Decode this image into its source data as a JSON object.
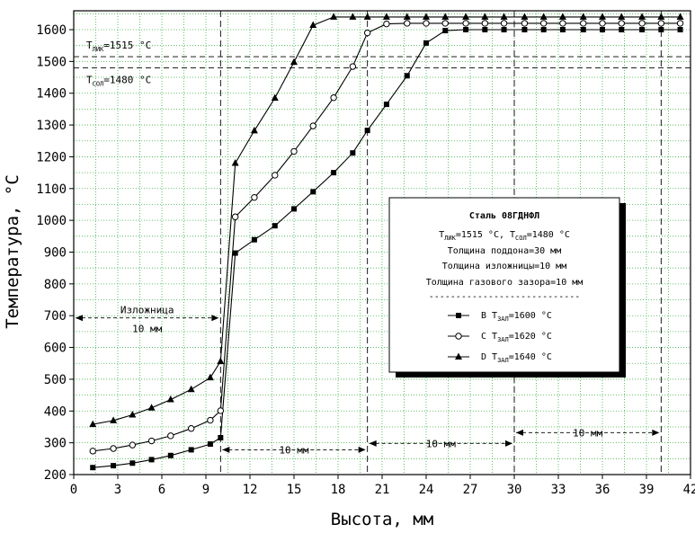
{
  "chart_data": {
    "type": "line",
    "xlabel": "Высота, мм",
    "ylabel": "Температура, °C",
    "xlim": [
      0,
      42
    ],
    "ylim": [
      200,
      1650
    ],
    "x_ticks": [
      0,
      3,
      6,
      9,
      12,
      15,
      18,
      21,
      24,
      27,
      30,
      33,
      36,
      39,
      42
    ],
    "y_ticks": [
      200,
      300,
      400,
      500,
      600,
      700,
      800,
      900,
      1000,
      1100,
      1200,
      1300,
      1400,
      1500,
      1600
    ],
    "grid": true,
    "reference_lines": [
      {
        "y": 1515,
        "label_main": "T",
        "label_sub": "ЛИК",
        "label_rest": "=1515 °C"
      },
      {
        "y": 1480,
        "label_main": "T",
        "label_sub": "СОЛ",
        "label_rest": "=1480 °C"
      }
    ],
    "vertical_lines": [
      10,
      20,
      30,
      40
    ],
    "annotations": [
      {
        "text": "Изложница",
        "from": 0,
        "to": 10,
        "y": 693
      },
      {
        "text": "10 мм",
        "from": 0,
        "to": 10,
        "y": 693,
        "below": true
      },
      {
        "text": "10 мм",
        "from": 10,
        "to": 20,
        "y": 278
      },
      {
        "text": "10 мм",
        "from": 20,
        "to": 30,
        "y": 298
      },
      {
        "text": "10 мм",
        "from": 30,
        "to": 40,
        "y": 332
      }
    ],
    "legend": {
      "position": "center-right",
      "title": "Сталь 08ГДНФЛ",
      "line1_main": "T",
      "line1_sub1": "ЛИК",
      "line1_mid": "=1515 °C, T",
      "line1_sub2": "СОЛ",
      "line1_end": "=1480 °C",
      "info": [
        "Толщина поддона=30 мм",
        "Толщина изложницы=10 мм",
        "Толщина газового зазора=10 мм"
      ],
      "separator": "----------------------------"
    },
    "series": [
      {
        "name": "B",
        "label_main": "B T",
        "label_sub": "ЗАЛ",
        "label_rest": "=1600 °C",
        "marker": "square",
        "x": [
          1.3,
          2.7,
          4.0,
          5.3,
          6.6,
          8.0,
          9.3,
          10.0,
          11.0,
          12.3,
          13.7,
          15.0,
          16.3,
          17.7,
          19.0,
          20.0,
          21.3,
          22.7,
          24.0,
          25.3,
          26.7,
          28.0,
          29.3,
          30.7,
          32.0,
          33.3,
          34.7,
          36.0,
          37.3,
          38.7,
          40.0,
          41.3
        ],
        "values": [
          222,
          228,
          236,
          247,
          260,
          278,
          296,
          316,
          897,
          939,
          983,
          1036,
          1090,
          1150,
          1212,
          1283,
          1365,
          1455,
          1558,
          1597,
          1600,
          1600,
          1600,
          1600,
          1600,
          1600,
          1600,
          1600,
          1600,
          1600,
          1600,
          1600
        ]
      },
      {
        "name": "C",
        "label_main": "C T",
        "label_sub": "ЗАЛ",
        "label_rest": "=1620 °C",
        "marker": "circle",
        "x": [
          1.3,
          2.7,
          4.0,
          5.3,
          6.6,
          8.0,
          9.3,
          10.0,
          11.0,
          12.3,
          13.7,
          15.0,
          16.3,
          17.7,
          19.0,
          20.0,
          21.3,
          22.7,
          24.0,
          25.3,
          26.7,
          28.0,
          29.3,
          30.7,
          32.0,
          33.3,
          34.7,
          36.0,
          37.3,
          38.7,
          40.0,
          41.3
        ],
        "values": [
          274,
          282,
          293,
          306,
          322,
          345,
          371,
          401,
          1011,
          1072,
          1142,
          1217,
          1297,
          1386,
          1484,
          1590,
          1618,
          1620,
          1620,
          1620,
          1620,
          1620,
          1620,
          1620,
          1620,
          1620,
          1620,
          1620,
          1620,
          1620,
          1620,
          1620
        ]
      },
      {
        "name": "D",
        "label_main": "D T",
        "label_sub": "ЗАЛ",
        "label_rest": "=1640 °C",
        "marker": "triangle",
        "x": [
          1.3,
          2.7,
          4.0,
          5.3,
          6.6,
          8.0,
          9.3,
          10.0,
          11.0,
          12.3,
          13.7,
          15.0,
          16.3,
          17.7,
          19.0,
          20.0,
          21.3,
          22.7,
          24.0,
          25.3,
          26.7,
          28.0,
          29.3,
          30.7,
          32.0,
          33.3,
          34.7,
          36.0,
          37.3,
          38.7,
          40.0,
          41.3
        ],
        "values": [
          358,
          370,
          388,
          410,
          436,
          468,
          505,
          556,
          1180,
          1282,
          1385,
          1498,
          1614,
          1640,
          1640,
          1640,
          1640,
          1640,
          1640,
          1640,
          1640,
          1640,
          1640,
          1640,
          1640,
          1640,
          1640,
          1640,
          1640,
          1640,
          1640,
          1640
        ]
      }
    ]
  }
}
